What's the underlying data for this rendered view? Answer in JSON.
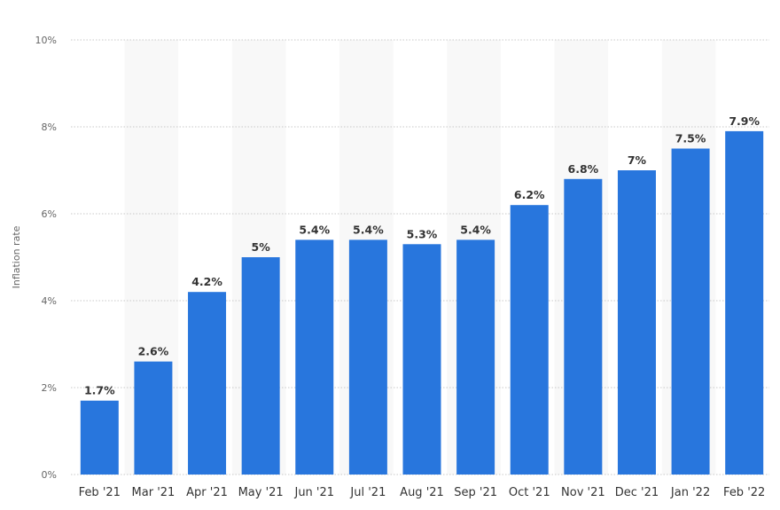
{
  "chart_data": {
    "type": "bar",
    "title": "",
    "xlabel": "",
    "ylabel": "Inflation rate",
    "categories": [
      "Feb '21",
      "Mar '21",
      "Apr '21",
      "May '21",
      "Jun '21",
      "Jul '21",
      "Aug '21",
      "Sep '21",
      "Oct '21",
      "Nov '21",
      "Dec '21",
      "Jan '22",
      "Feb '22"
    ],
    "values": [
      1.7,
      2.6,
      4.2,
      5.0,
      5.4,
      5.4,
      5.3,
      5.4,
      6.2,
      6.8,
      7.0,
      7.5,
      7.9
    ],
    "data_labels": [
      "1.7%",
      "2.6%",
      "4.2%",
      "5%",
      "5.4%",
      "5.4%",
      "5.3%",
      "5.4%",
      "6.2%",
      "6.8%",
      "7%",
      "7.5%",
      "7.9%"
    ],
    "ylim": [
      0,
      10
    ],
    "y_ticks": [
      0,
      2,
      4,
      6,
      8,
      10
    ],
    "y_tick_labels": [
      "0%",
      "2%",
      "4%",
      "6%",
      "8%",
      "10%"
    ],
    "grid": true,
    "bar_color": "#2876dd",
    "band_color": "#f8f8f8",
    "grid_color": "#c8c8c8"
  }
}
